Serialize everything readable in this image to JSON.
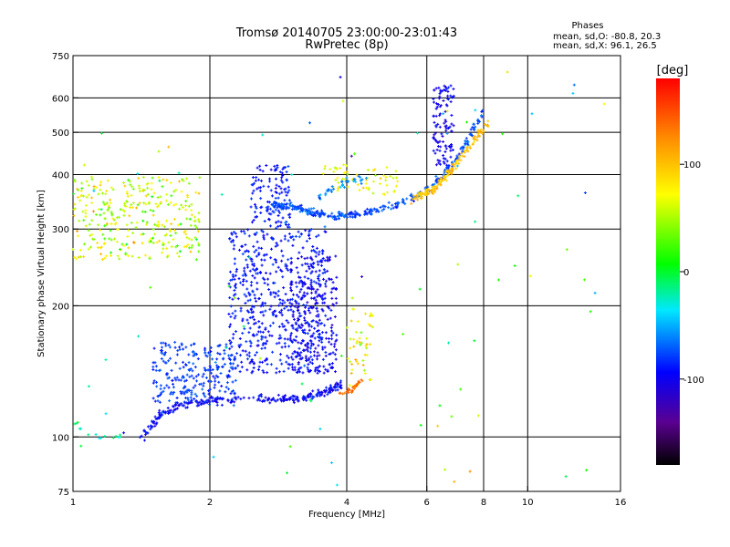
{
  "chart_data": {
    "type": "scatter",
    "title": "Tromsø 20140705 23:00:00-23:01:43",
    "subtitle": "RwPretec (8p)",
    "xlabel": "Frequency [MHz]",
    "ylabel": "Stationary phase Virtual Height [km]",
    "x_scale": "log",
    "y_scale": "log",
    "xlim": [
      1,
      16
    ],
    "ylim": [
      75,
      750
    ],
    "grid": true,
    "x_ticks": [
      {
        "value": 1,
        "label": "1"
      },
      {
        "value": 2,
        "label": "2"
      },
      {
        "value": 4,
        "label": "4"
      },
      {
        "value": 6,
        "label": "6"
      },
      {
        "value": 8,
        "label": "8"
      },
      {
        "value": 10,
        "label": "10"
      },
      {
        "value": 16,
        "label": "16"
      }
    ],
    "x_grid": [
      2,
      4,
      6,
      8,
      10
    ],
    "y_ticks": [
      {
        "value": 75,
        "label": "75"
      },
      {
        "value": 100,
        "label": "100"
      },
      {
        "value": 200,
        "label": "200"
      },
      {
        "value": 300,
        "label": "300"
      },
      {
        "value": 400,
        "label": "400"
      },
      {
        "value": 500,
        "label": "500"
      },
      {
        "value": 600,
        "label": "600"
      },
      {
        "value": 750,
        "label": "750"
      }
    ],
    "y_grid": [
      100,
      200,
      300,
      400,
      500,
      600
    ],
    "stats": {
      "heading": "Phases",
      "line_o": "mean, sd,O: -80.8, 20.3",
      "line_x": "mean, sd,X: 96.1, 26.5"
    },
    "colorbar": {
      "label": "[deg]",
      "range": [
        -180,
        180
      ],
      "ticks": [
        {
          "value": 100,
          "label": "100"
        },
        {
          "value": 0,
          "label": "0"
        },
        {
          "value": -100,
          "label": "-100"
        }
      ]
    },
    "clusters": [
      {
        "fmin": 1.0,
        "fmax": 1.9,
        "hmin": 255,
        "hmax": 395,
        "phase": 60,
        "spread": 70,
        "n": 320
      },
      {
        "fmin": 2.45,
        "fmax": 3.0,
        "hmin": 300,
        "hmax": 420,
        "phase": -90,
        "spread": 20,
        "n": 120
      },
      {
        "fmin": 2.2,
        "fmax": 3.6,
        "hmin": 140,
        "hmax": 300,
        "phase": -90,
        "spread": 20,
        "n": 550
      },
      {
        "fmin": 3.0,
        "fmax": 3.8,
        "hmin": 140,
        "hmax": 260,
        "phase": -100,
        "spread": 20,
        "n": 260
      },
      {
        "fmin": 1.5,
        "fmax": 2.3,
        "hmin": 118,
        "hmax": 165,
        "phase": -80,
        "spread": 20,
        "n": 260
      },
      {
        "fmin": 6.2,
        "fmax": 6.9,
        "hmin": 420,
        "hmax": 640,
        "phase": -100,
        "spread": 20,
        "n": 110
      },
      {
        "fmin": 3.5,
        "fmax": 5.2,
        "hmin": 360,
        "hmax": 420,
        "phase": 70,
        "spread": 40,
        "n": 60
      },
      {
        "fmin": 4.0,
        "fmax": 4.6,
        "hmin": 130,
        "hmax": 200,
        "phase": 80,
        "spread": 60,
        "n": 50
      },
      {
        "fmin": 1.0,
        "fmax": 16.0,
        "hmin": 75,
        "hmax": 700,
        "phase": 0,
        "spread": 160,
        "n": 90
      }
    ],
    "traces": [
      {
        "points": [
          [
            1.42,
            100
          ],
          [
            1.55,
            112
          ],
          [
            1.7,
            118
          ],
          [
            2.0,
            121
          ],
          [
            2.5,
            122
          ],
          [
            2.9,
            122
          ],
          [
            3.2,
            123
          ],
          [
            3.6,
            127
          ],
          [
            3.9,
            132
          ]
        ],
        "phase": -95,
        "n": 260,
        "jitter": 0.03
      },
      {
        "points": [
          [
            3.8,
            125
          ],
          [
            4.1,
            128
          ],
          [
            4.3,
            135
          ]
        ],
        "phase": 140,
        "n": 30,
        "jitter": 0.02
      },
      {
        "points": [
          [
            2.75,
            340
          ],
          [
            3.0,
            340
          ],
          [
            3.3,
            328
          ],
          [
            3.6,
            322
          ],
          [
            4.0,
            322
          ],
          [
            4.6,
            330
          ],
          [
            5.4,
            347
          ],
          [
            6.2,
            380
          ],
          [
            6.8,
            420
          ],
          [
            7.4,
            480
          ],
          [
            8.0,
            560
          ]
        ],
        "phase": -75,
        "n": 320,
        "jitter": 0.03
      },
      {
        "points": [
          [
            5.5,
            350
          ],
          [
            6.2,
            370
          ],
          [
            6.8,
            410
          ],
          [
            7.4,
            460
          ],
          [
            8.2,
            530
          ]
        ],
        "phase": 100,
        "n": 140,
        "jitter": 0.03
      },
      {
        "points": [
          [
            3.3,
            330
          ],
          [
            3.6,
            365
          ],
          [
            4.0,
            385
          ],
          [
            4.5,
            395
          ]
        ],
        "phase": -60,
        "n": 40,
        "jitter": 0.03
      },
      {
        "points": [
          [
            1.0,
            108
          ],
          [
            1.12,
            100
          ],
          [
            1.3,
            100
          ]
        ],
        "phase": -20,
        "n": 14,
        "jitter": 0.02
      }
    ]
  }
}
